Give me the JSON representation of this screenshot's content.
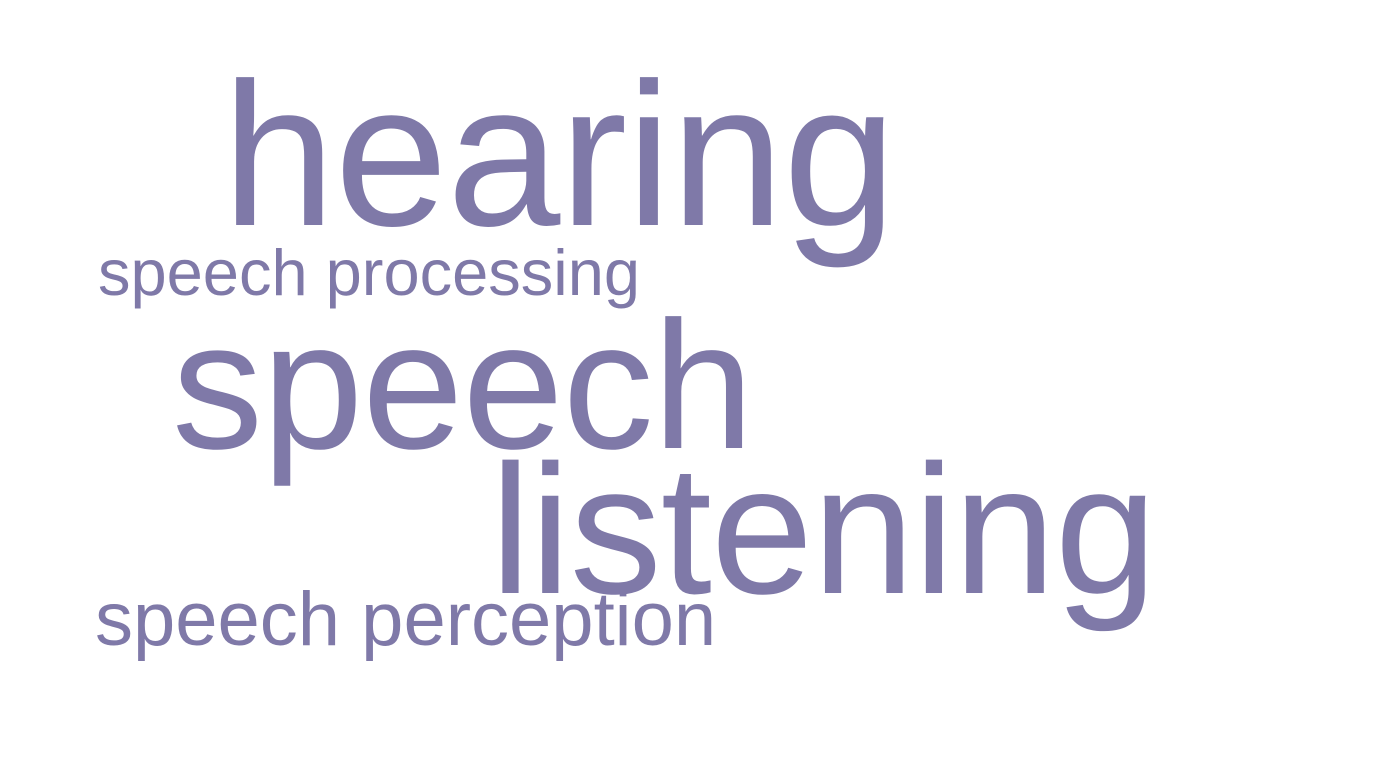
{
  "word_cloud": {
    "color": "#7f79a8",
    "words": [
      {
        "text": "hearing"
      },
      {
        "text": "speech processing"
      },
      {
        "text": "speech"
      },
      {
        "text": "listening"
      },
      {
        "text": "speech perception"
      }
    ]
  }
}
